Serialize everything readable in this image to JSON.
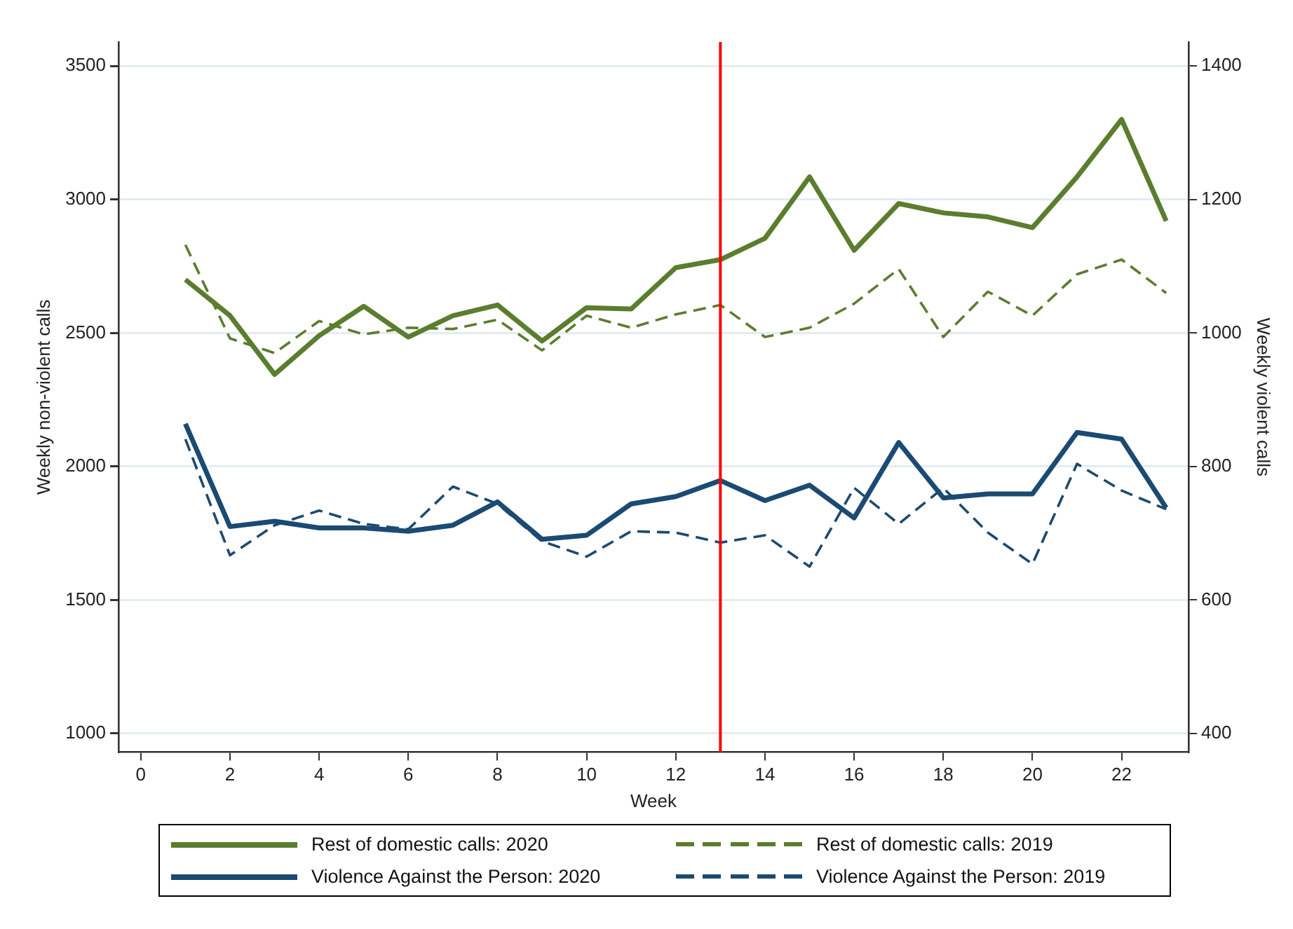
{
  "chart_data": {
    "type": "line",
    "xlabel": "Week",
    "ylabel": "Weekly non-violent calls",
    "y2label": "Weekly violent calls",
    "x": [
      1,
      2,
      3,
      4,
      5,
      6,
      7,
      8,
      9,
      10,
      11,
      12,
      13,
      14,
      15,
      16,
      17,
      18,
      19,
      20,
      21,
      22,
      23
    ],
    "xlim": [
      -0.5,
      23.5
    ],
    "xticks": [
      0,
      2,
      4,
      6,
      8,
      10,
      12,
      14,
      16,
      18,
      20,
      22
    ],
    "ylim": [
      930,
      3590
    ],
    "yticks": [
      1000,
      1500,
      2000,
      2500,
      3000,
      3500
    ],
    "y2lim": [
      372,
      1436
    ],
    "y2ticks": [
      400,
      600,
      800,
      1000,
      1200,
      1400
    ],
    "grid": "y",
    "legend": "bottom",
    "marker": "none",
    "ref_lines": [
      {
        "axis": "x",
        "value": 13,
        "color": "#ff0000"
      }
    ],
    "series": [
      {
        "name": "Rest of domestic calls: 2020",
        "color": "#5b7d2e",
        "line_style": "solid",
        "values": [
          2700,
          2565,
          2345,
          2490,
          2600,
          2485,
          2565,
          2605,
          2470,
          2595,
          2590,
          2745,
          2775,
          2855,
          3085,
          2810,
          2985,
          2950,
          2935,
          2895,
          3085,
          3300,
          2920
        ]
      },
      {
        "name": "Rest of domestic calls: 2019",
        "color": "#5b7d2e",
        "line_style": "dashed",
        "values": [
          2830,
          2480,
          2425,
          2545,
          2495,
          2520,
          2515,
          2550,
          2435,
          2565,
          2520,
          2570,
          2605,
          2485,
          2520,
          2610,
          2740,
          2485,
          2655,
          2565,
          2720,
          2775,
          2650
        ]
      },
      {
        "name": "Violence Against the Person: 2020",
        "color": "#1b4a72",
        "line_style": "solid",
        "axis": "y2",
        "values": [
          864,
          710,
          718,
          708,
          708,
          703,
          712,
          747,
          691,
          697,
          744,
          755,
          779,
          749,
          772,
          723,
          836,
          753,
          759,
          759,
          851,
          841,
          738
        ]
      },
      {
        "name": "Violence Against the Person: 2019",
        "color": "#1b4a72",
        "line_style": "dashed",
        "axis": "y2",
        "values": [
          841,
          667,
          712,
          734,
          714,
          706,
          770,
          744,
          688,
          665,
          703,
          701,
          686,
          697,
          650,
          768,
          714,
          768,
          701,
          654,
          804,
          764,
          736
        ]
      }
    ]
  }
}
